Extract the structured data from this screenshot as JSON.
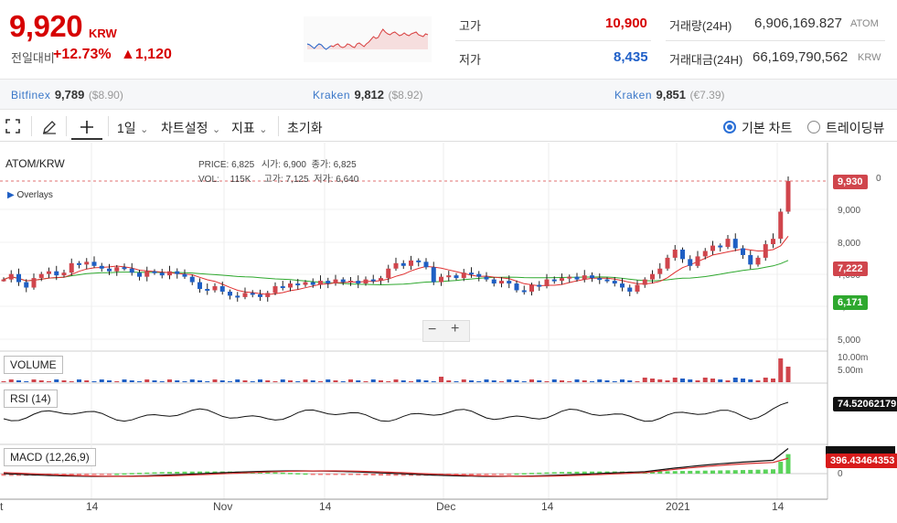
{
  "ticker": {
    "price": "9,920",
    "unit": "KRW",
    "compare_label": "전일대비",
    "change_pct": "+12.73%",
    "change_abs": "▲1,120"
  },
  "stats": {
    "high_label": "고가",
    "high_value": "10,900",
    "low_label": "저가",
    "low_value": "8,435",
    "vol_label": "거래량(24H)",
    "vol_value": "6,906,169.827",
    "vol_unit": "ATOM",
    "amt_label": "거래대금(24H)",
    "amt_value": "66,169,790,562",
    "amt_unit": "KRW"
  },
  "exchanges": [
    {
      "name": "Bitfinex",
      "price": "9,789",
      "usd": "($8.90)"
    },
    {
      "name": "Kraken",
      "price": "9,812",
      "usd": "($8.92)"
    },
    {
      "name": "Kraken",
      "price": "9,851",
      "usd": "(€7.39)"
    }
  ],
  "toolbar": {
    "interval": "1일",
    "chart_settings": "차트설정",
    "indicators": "지표",
    "reset": "초기화",
    "basic_chart": "기본 차트",
    "trading_view": "트레이딩뷰"
  },
  "chart": {
    "pair": "ATOM/KRW",
    "overlays": "Overlays",
    "ohlc": {
      "price_lbl": "PRICE:",
      "price": "6,825",
      "open_lbl": "시가:",
      "open": "6,900",
      "close_lbl": "종가:",
      "close": "6,825",
      "vol_lbl": "VOL:",
      "vol": "115K",
      "high_lbl": "고가:",
      "high": "7,125",
      "low_lbl": "저가:",
      "low": "6,640"
    },
    "zoom_out": "−",
    "zoom_in": "+",
    "price_ticks": [
      "0",
      "9,000",
      "8,000",
      "7,000",
      "6,000",
      "5,000"
    ],
    "last_tag": "9,930",
    "ma1_tag": "7,222",
    "ma2_tag": "6,171",
    "volume_label": "VOLUME",
    "volume_ticks": [
      "10.00m",
      "5.00m"
    ],
    "rsi_label": "RSI (14)",
    "rsi_tag": "74.52062179",
    "macd_label": "MACD (12,26,9)",
    "macd_tag": "396.43464353",
    "macd_tick": "0",
    "x_ticks": [
      "t",
      "14",
      "Nov",
      "14",
      "Dec",
      "14",
      "2021",
      "14"
    ]
  },
  "colors": {
    "up": "#d0454c",
    "down": "#1f5fc4",
    "ma_short": "#e03030",
    "ma_long": "#2ea82e",
    "accent_red": "#d60000",
    "accent_blue": "#2060c8"
  },
  "icons": [
    "fullscreen-icon",
    "pencil-icon",
    "crosshair-icon",
    "chevron-down-icon"
  ]
}
